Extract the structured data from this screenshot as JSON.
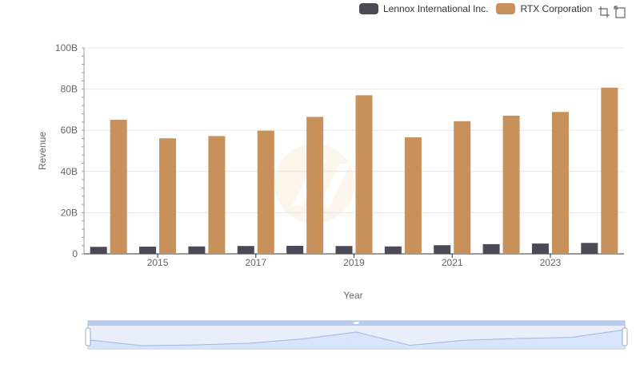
{
  "legend": {
    "series_1": "Lennox International Inc.",
    "series_2": "RTX Corporation"
  },
  "toolbox": {
    "zoom_icon": "zoom-icon",
    "restore_icon": "restore-icon"
  },
  "colors": {
    "lennox": "#4a4a56",
    "rtx": "#c8915c",
    "grid": "#e6e6e6",
    "axis": "#333333",
    "slider_fill": "#d6e2fb",
    "slider_border": "#a9bde8"
  },
  "chart_data": {
    "type": "bar",
    "title": "",
    "xlabel": "Year",
    "ylabel": "Revenue",
    "ylim": [
      0,
      100
    ],
    "y_unit": "B",
    "y_ticks": [
      "0",
      "20B",
      "40B",
      "60B",
      "80B",
      "100B"
    ],
    "categories": [
      "2014",
      "2015",
      "2016",
      "2017",
      "2018",
      "2019",
      "2020",
      "2021",
      "2022",
      "2023",
      "2024"
    ],
    "x_tick_labels": [
      "2015",
      "2017",
      "2019",
      "2021",
      "2023"
    ],
    "series": [
      {
        "name": "Lennox International Inc.",
        "values": [
          3.4,
          3.5,
          3.6,
          3.8,
          3.9,
          3.8,
          3.6,
          4.2,
          4.7,
          5.0,
          5.3
        ]
      },
      {
        "name": "RTX Corporation",
        "values": [
          65.1,
          56.1,
          57.2,
          59.8,
          66.5,
          77.0,
          56.6,
          64.4,
          67.1,
          68.9,
          80.7
        ]
      }
    ]
  }
}
